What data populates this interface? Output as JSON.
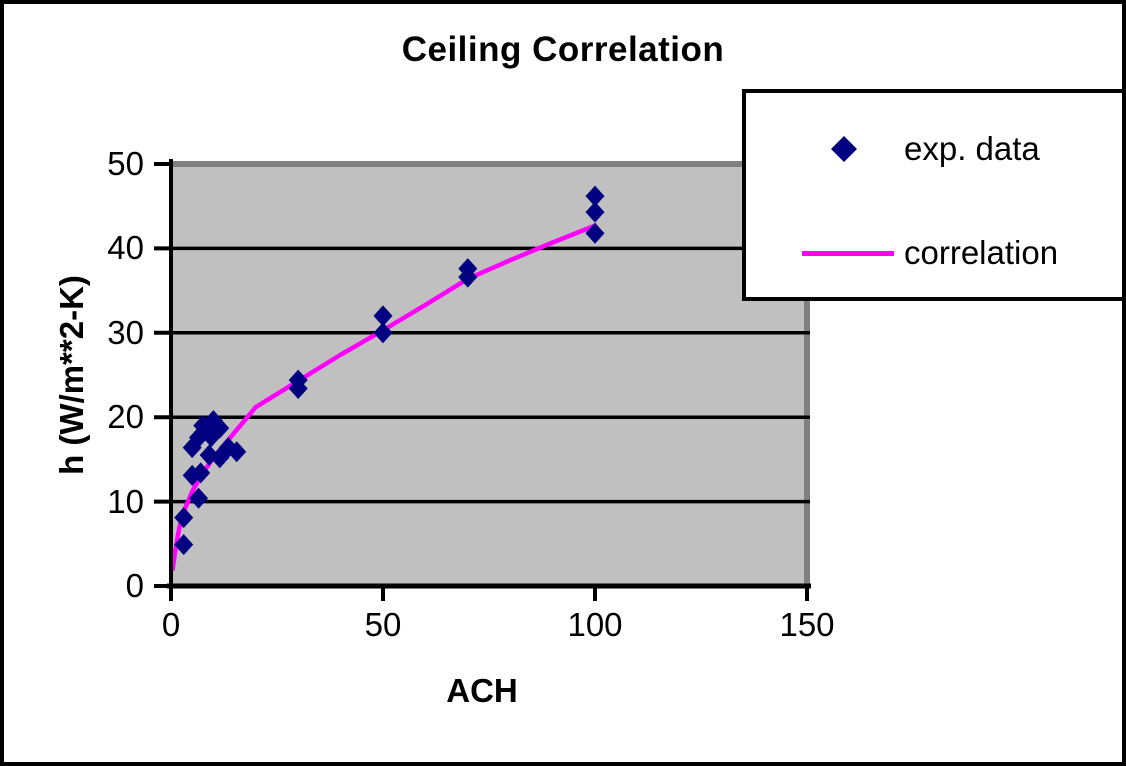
{
  "figure": {
    "background": "#ffffff",
    "border_color": "#000000"
  },
  "chart_data": {
    "type": "scatter",
    "title": "Ceiling Correlation",
    "xlabel": "ACH",
    "ylabel": "h (W/m**2-K)",
    "xlim": [
      0,
      150
    ],
    "ylim": [
      0,
      50
    ],
    "xticks": [
      0,
      50,
      100,
      150
    ],
    "yticks": [
      0,
      10,
      20,
      30,
      40,
      50
    ],
    "grid": "horizontal-black-gridlines",
    "plot_background": "#c0c0c0",
    "plot_border": "#808080",
    "axis_color": "#000000",
    "legend": {
      "position": "top-right",
      "background": "#ffffff",
      "border_color": "#000000"
    },
    "series": [
      {
        "name": "exp. data",
        "kind": "scatter",
        "marker": "diamond",
        "color": "#000080",
        "points": [
          [
            3,
            4.9
          ],
          [
            3,
            8.1
          ],
          [
            6.5,
            10.4
          ],
          [
            5,
            13.1
          ],
          [
            7,
            13.4
          ],
          [
            5,
            16.4
          ],
          [
            6.5,
            17.6
          ],
          [
            7.5,
            19.0
          ],
          [
            10,
            19.6
          ],
          [
            11.5,
            18.7
          ],
          [
            9.5,
            17.7
          ],
          [
            9,
            15.5
          ],
          [
            11.5,
            15.2
          ],
          [
            13.5,
            16.4
          ],
          [
            15.5,
            15.9
          ],
          [
            30,
            24.4
          ],
          [
            30,
            23.4
          ],
          [
            50,
            32
          ],
          [
            50,
            30
          ],
          [
            70,
            37.6
          ],
          [
            70,
            36.6
          ],
          [
            100,
            46.2
          ],
          [
            100,
            44.3
          ],
          [
            100,
            41.8
          ]
        ]
      },
      {
        "name": "correlation",
        "kind": "line",
        "color": "#ff00ff",
        "points": [
          [
            0.4,
            2.0
          ],
          [
            1,
            4.2
          ],
          [
            2,
            7.0
          ],
          [
            3,
            8.8
          ],
          [
            5,
            11.2
          ],
          [
            7,
            13.0
          ],
          [
            10,
            15.2
          ],
          [
            15,
            18.2
          ],
          [
            20,
            21.2
          ],
          [
            30,
            24.3
          ],
          [
            40,
            27.4
          ],
          [
            50,
            30.3
          ],
          [
            60,
            33.3
          ],
          [
            70,
            36.4
          ],
          [
            80,
            38.6
          ],
          [
            90,
            40.7
          ],
          [
            100,
            42.7
          ]
        ]
      }
    ]
  }
}
